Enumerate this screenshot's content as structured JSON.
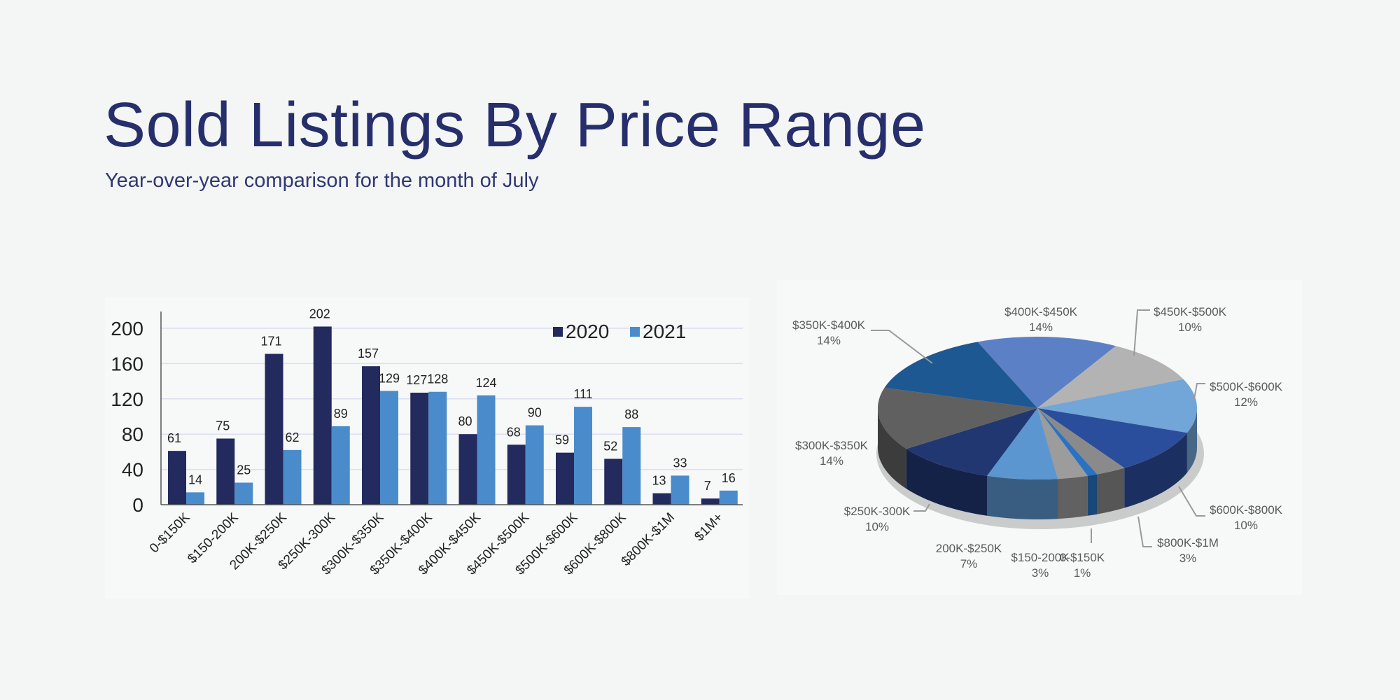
{
  "header": {
    "title": "Sold Listings By Price Range",
    "subtitle": "Year-over-year comparison for the month of July"
  },
  "chart_data": [
    {
      "type": "bar",
      "categories": [
        "0-$150K",
        "$150-200K",
        "200K-$250K",
        "$250K-300K",
        "$300K-$350K",
        "$350K-$400K",
        "$400K-$450K",
        "$450K-$500K",
        "$500K-$600K",
        "$600K-$800K",
        "$800K-$1M",
        "$1M+"
      ],
      "series": [
        {
          "name": "2020",
          "color": "#222a5e",
          "values": [
            61,
            75,
            171,
            202,
            157,
            127,
            80,
            68,
            59,
            52,
            13,
            7
          ]
        },
        {
          "name": "2021",
          "color": "#4a8ccb",
          "values": [
            14,
            25,
            62,
            89,
            129,
            128,
            124,
            90,
            111,
            88,
            33,
            16
          ]
        }
      ],
      "yticks": [
        "0",
        "40",
        "80",
        "120",
        "160",
        "200"
      ],
      "ylim": [
        0,
        200
      ],
      "grid": true,
      "legend": "top-right",
      "data_labels": true
    },
    {
      "type": "pie",
      "style": "3d",
      "slices": [
        {
          "label": "$400K-$450K",
          "pct_label": "14%",
          "value": 14,
          "color": "#5b80c6"
        },
        {
          "label": "$450K-$500K",
          "pct_label": "10%",
          "value": 10,
          "color": "#b3b3b3"
        },
        {
          "label": "$500K-$600K",
          "pct_label": "12%",
          "value": 12,
          "color": "#72a6d8"
        },
        {
          "label": "$600K-$800K",
          "pct_label": "10%",
          "value": 10,
          "color": "#2b4e9c"
        },
        {
          "label": "$800K-$1M",
          "pct_label": "3%",
          "value": 3,
          "color": "#8a8a8a"
        },
        {
          "label": "0-$150K",
          "pct_label": "1%",
          "value": 1,
          "color": "#2a72c2"
        },
        {
          "label": "$150-200K",
          "pct_label": "3%",
          "value": 3,
          "color": "#9c9c9c"
        },
        {
          "label": "200K-$250K",
          "pct_label": "7%",
          "value": 7,
          "color": "#5b96d0"
        },
        {
          "label": "$250K-300K",
          "pct_label": "10%",
          "value": 10,
          "color": "#203772"
        },
        {
          "label": "$300K-$350K",
          "pct_label": "14%",
          "value": 14,
          "color": "#606060"
        },
        {
          "label": "$350K-$400K",
          "pct_label": "14%",
          "value": 14,
          "color": "#1d5892"
        }
      ]
    }
  ]
}
